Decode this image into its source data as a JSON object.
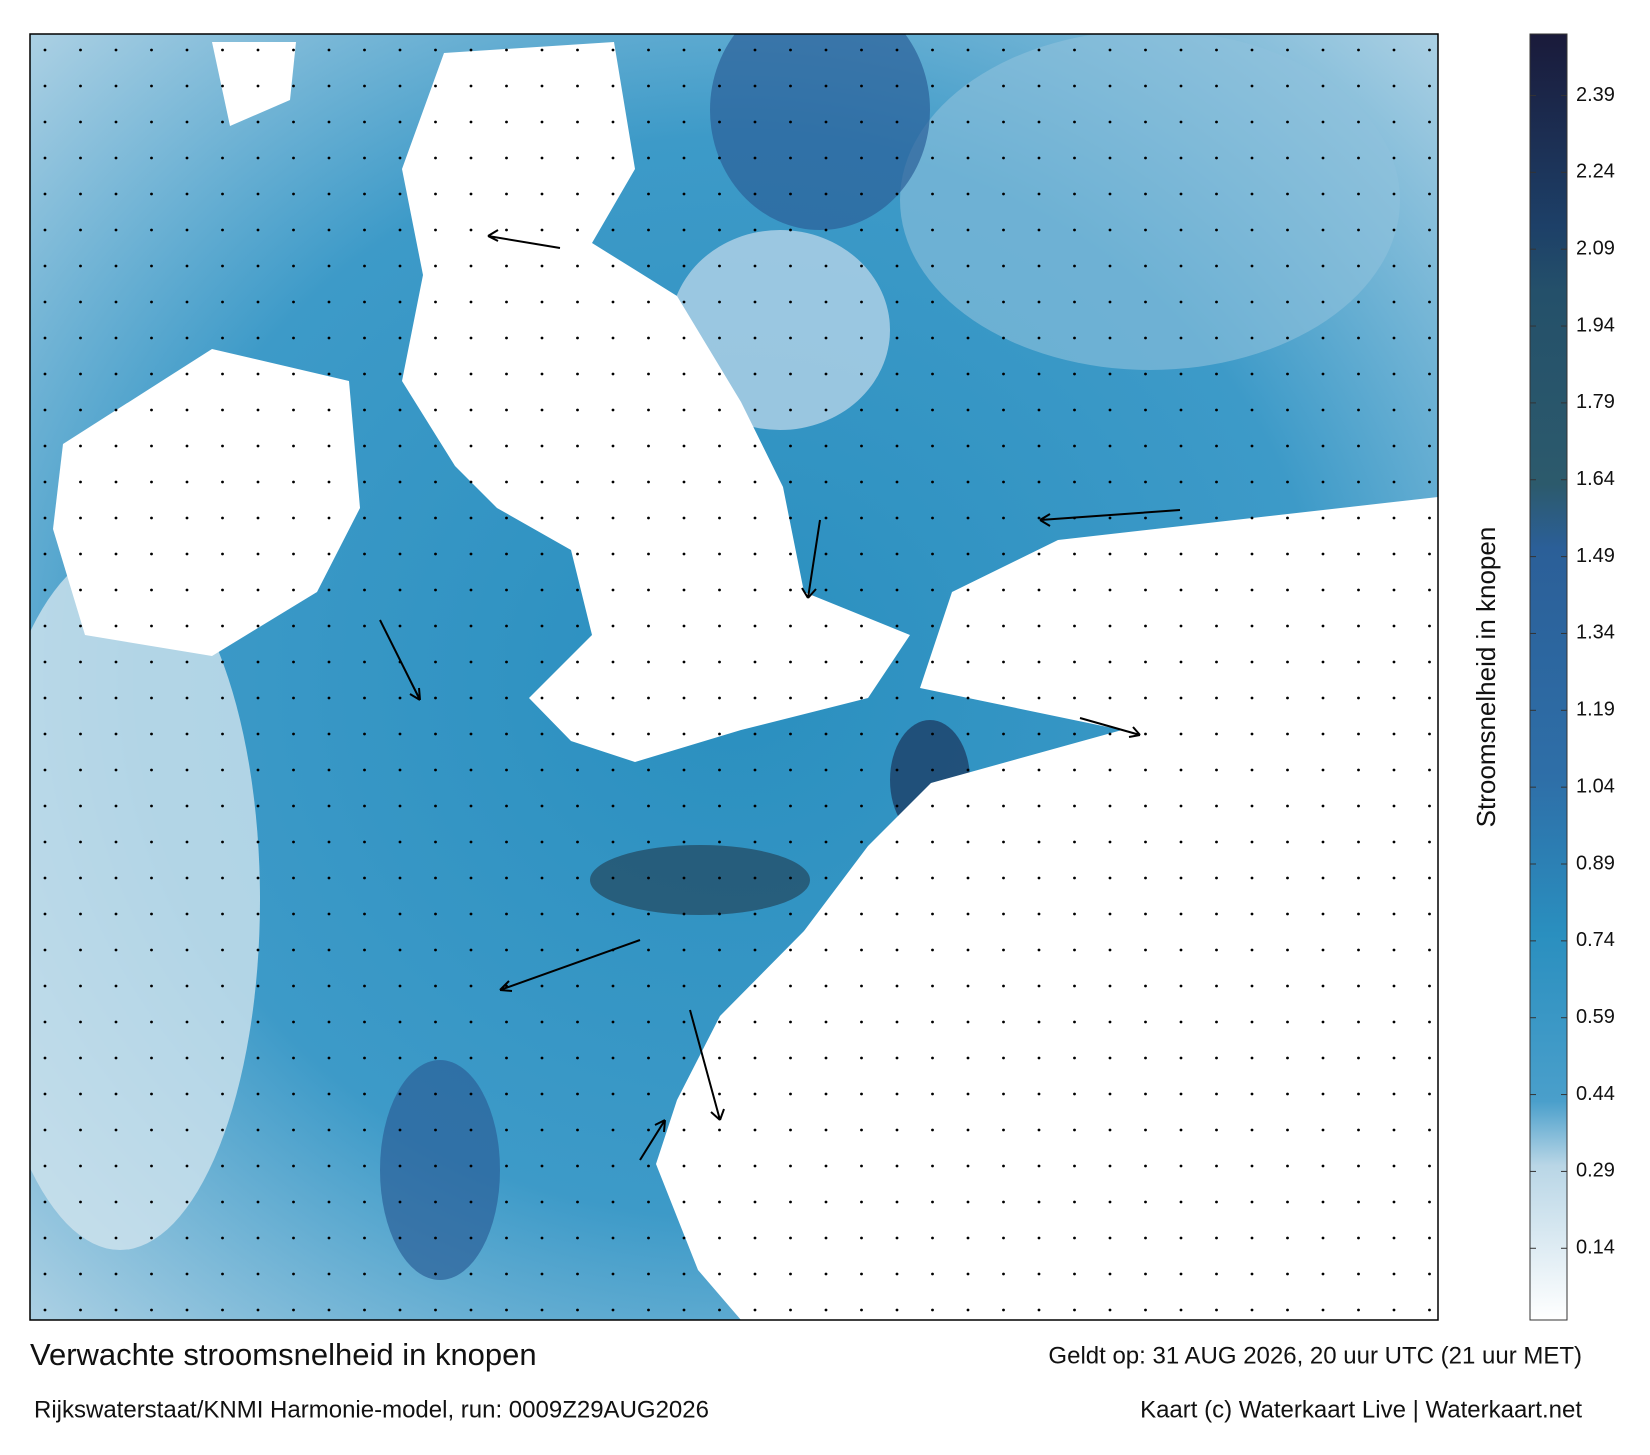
{
  "header": {
    "title": "Verwachte stroomsnelheid in knopen",
    "subtitle": "Rijkswaterstaat/KNMI Harmonie-model, run: 0009Z29AUG2026",
    "valid": "Geldt op: 31 AUG 2026, 20 uur UTC (21 uur MET)",
    "credit": "Kaart (c) Waterkaart Live | Waterkaart.net"
  },
  "colorbar": {
    "label": "Stroomsnelheid in knopen",
    "lim": [
      0,
      2.51
    ],
    "ticks": [
      0.14,
      0.29,
      0.44,
      0.59,
      0.74,
      0.89,
      1.04,
      1.19,
      1.34,
      1.49,
      1.64,
      1.79,
      1.94,
      2.09,
      2.24,
      2.39
    ]
  }
}
